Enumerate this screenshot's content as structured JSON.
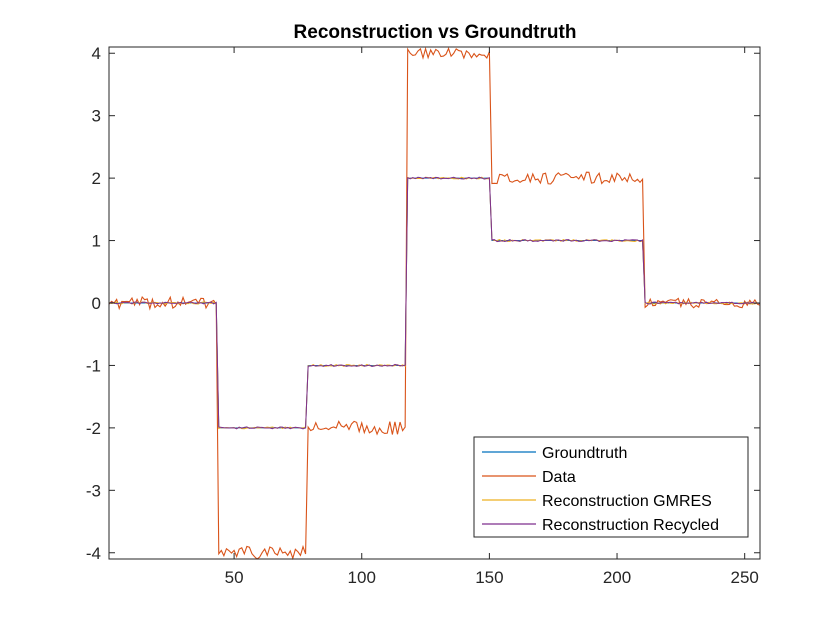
{
  "chart_data": {
    "type": "line",
    "title": "Reconstruction vs Groundtruth",
    "xlabel": "",
    "ylabel": "",
    "xlim": [
      1,
      256
    ],
    "ylim": [
      -4.1,
      4.1
    ],
    "xticks": [
      50,
      100,
      150,
      200,
      250
    ],
    "yticks": [
      -4,
      -3,
      -2,
      -1,
      0,
      1,
      2,
      3,
      4
    ],
    "grid": false,
    "legend_position": "bottom-right",
    "series": [
      {
        "name": "Groundtruth",
        "color": "#0072BD",
        "segments": [
          {
            "x_start": 1,
            "x_end": 43,
            "value": 0
          },
          {
            "x_start": 44,
            "x_end": 78,
            "value": -2
          },
          {
            "x_start": 79,
            "x_end": 117,
            "value": -1
          },
          {
            "x_start": 118,
            "x_end": 150,
            "value": 2
          },
          {
            "x_start": 151,
            "x_end": 210,
            "value": 1
          },
          {
            "x_start": 211,
            "x_end": 256,
            "value": 0
          }
        ]
      },
      {
        "name": "Data",
        "color": "#D95319",
        "segments": [
          {
            "x_start": 1,
            "x_end": 43,
            "value": 0,
            "noise": 0.06
          },
          {
            "x_start": 44,
            "x_end": 78,
            "value": -4,
            "noise": 0.07
          },
          {
            "x_start": 79,
            "x_end": 117,
            "value": -2,
            "noise": 0.07
          },
          {
            "x_start": 118,
            "x_end": 150,
            "value": 4,
            "noise": 0.05
          },
          {
            "x_start": 151,
            "x_end": 210,
            "value": 2,
            "noise": 0.06
          },
          {
            "x_start": 211,
            "x_end": 256,
            "value": 0,
            "noise": 0.05
          }
        ]
      },
      {
        "name": "Reconstruction GMRES",
        "color": "#EDB120",
        "segments": [
          {
            "x_start": 1,
            "x_end": 43,
            "value": 0,
            "noise": 0.01
          },
          {
            "x_start": 44,
            "x_end": 78,
            "value": -2,
            "noise": 0.01
          },
          {
            "x_start": 79,
            "x_end": 117,
            "value": -1,
            "noise": 0.01
          },
          {
            "x_start": 118,
            "x_end": 150,
            "value": 2,
            "noise": 0.01
          },
          {
            "x_start": 151,
            "x_end": 210,
            "value": 1,
            "noise": 0.01
          },
          {
            "x_start": 211,
            "x_end": 256,
            "value": 0,
            "noise": 0.01
          }
        ]
      },
      {
        "name": "Reconstruction Recycled",
        "color": "#7E2F8E",
        "segments": [
          {
            "x_start": 1,
            "x_end": 43,
            "value": 0,
            "noise": 0.01
          },
          {
            "x_start": 44,
            "x_end": 78,
            "value": -2,
            "noise": 0.01
          },
          {
            "x_start": 79,
            "x_end": 117,
            "value": -1,
            "noise": 0.01
          },
          {
            "x_start": 118,
            "x_end": 150,
            "value": 2,
            "noise": 0.01
          },
          {
            "x_start": 151,
            "x_end": 210,
            "value": 1,
            "noise": 0.01
          },
          {
            "x_start": 211,
            "x_end": 256,
            "value": 0,
            "noise": 0.01
          }
        ]
      }
    ]
  }
}
